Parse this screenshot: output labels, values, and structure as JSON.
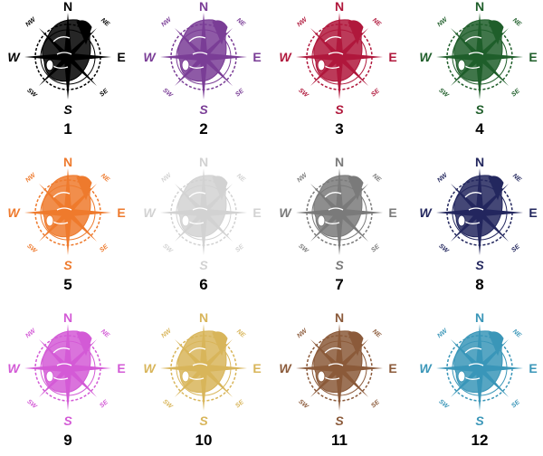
{
  "compass_labels": {
    "n": "N",
    "ne": "NE",
    "e": "E",
    "se": "SE",
    "s": "S",
    "sw": "SW",
    "w": "W",
    "nw": "NW"
  },
  "variants": [
    {
      "number": "1",
      "color": "#000000"
    },
    {
      "number": "2",
      "color": "#7a3d96"
    },
    {
      "number": "3",
      "color": "#b0183c"
    },
    {
      "number": "4",
      "color": "#1f5e2a"
    },
    {
      "number": "5",
      "color": "#ee7a2d"
    },
    {
      "number": "6",
      "color": "#d2d2d2"
    },
    {
      "number": "7",
      "color": "#7a7a7a"
    },
    {
      "number": "8",
      "color": "#23275e"
    },
    {
      "number": "9",
      "color": "#d35ad6"
    },
    {
      "number": "10",
      "color": "#d8b55a"
    },
    {
      "number": "11",
      "color": "#8b5a3a"
    },
    {
      "number": "12",
      "color": "#3a96b8"
    }
  ]
}
